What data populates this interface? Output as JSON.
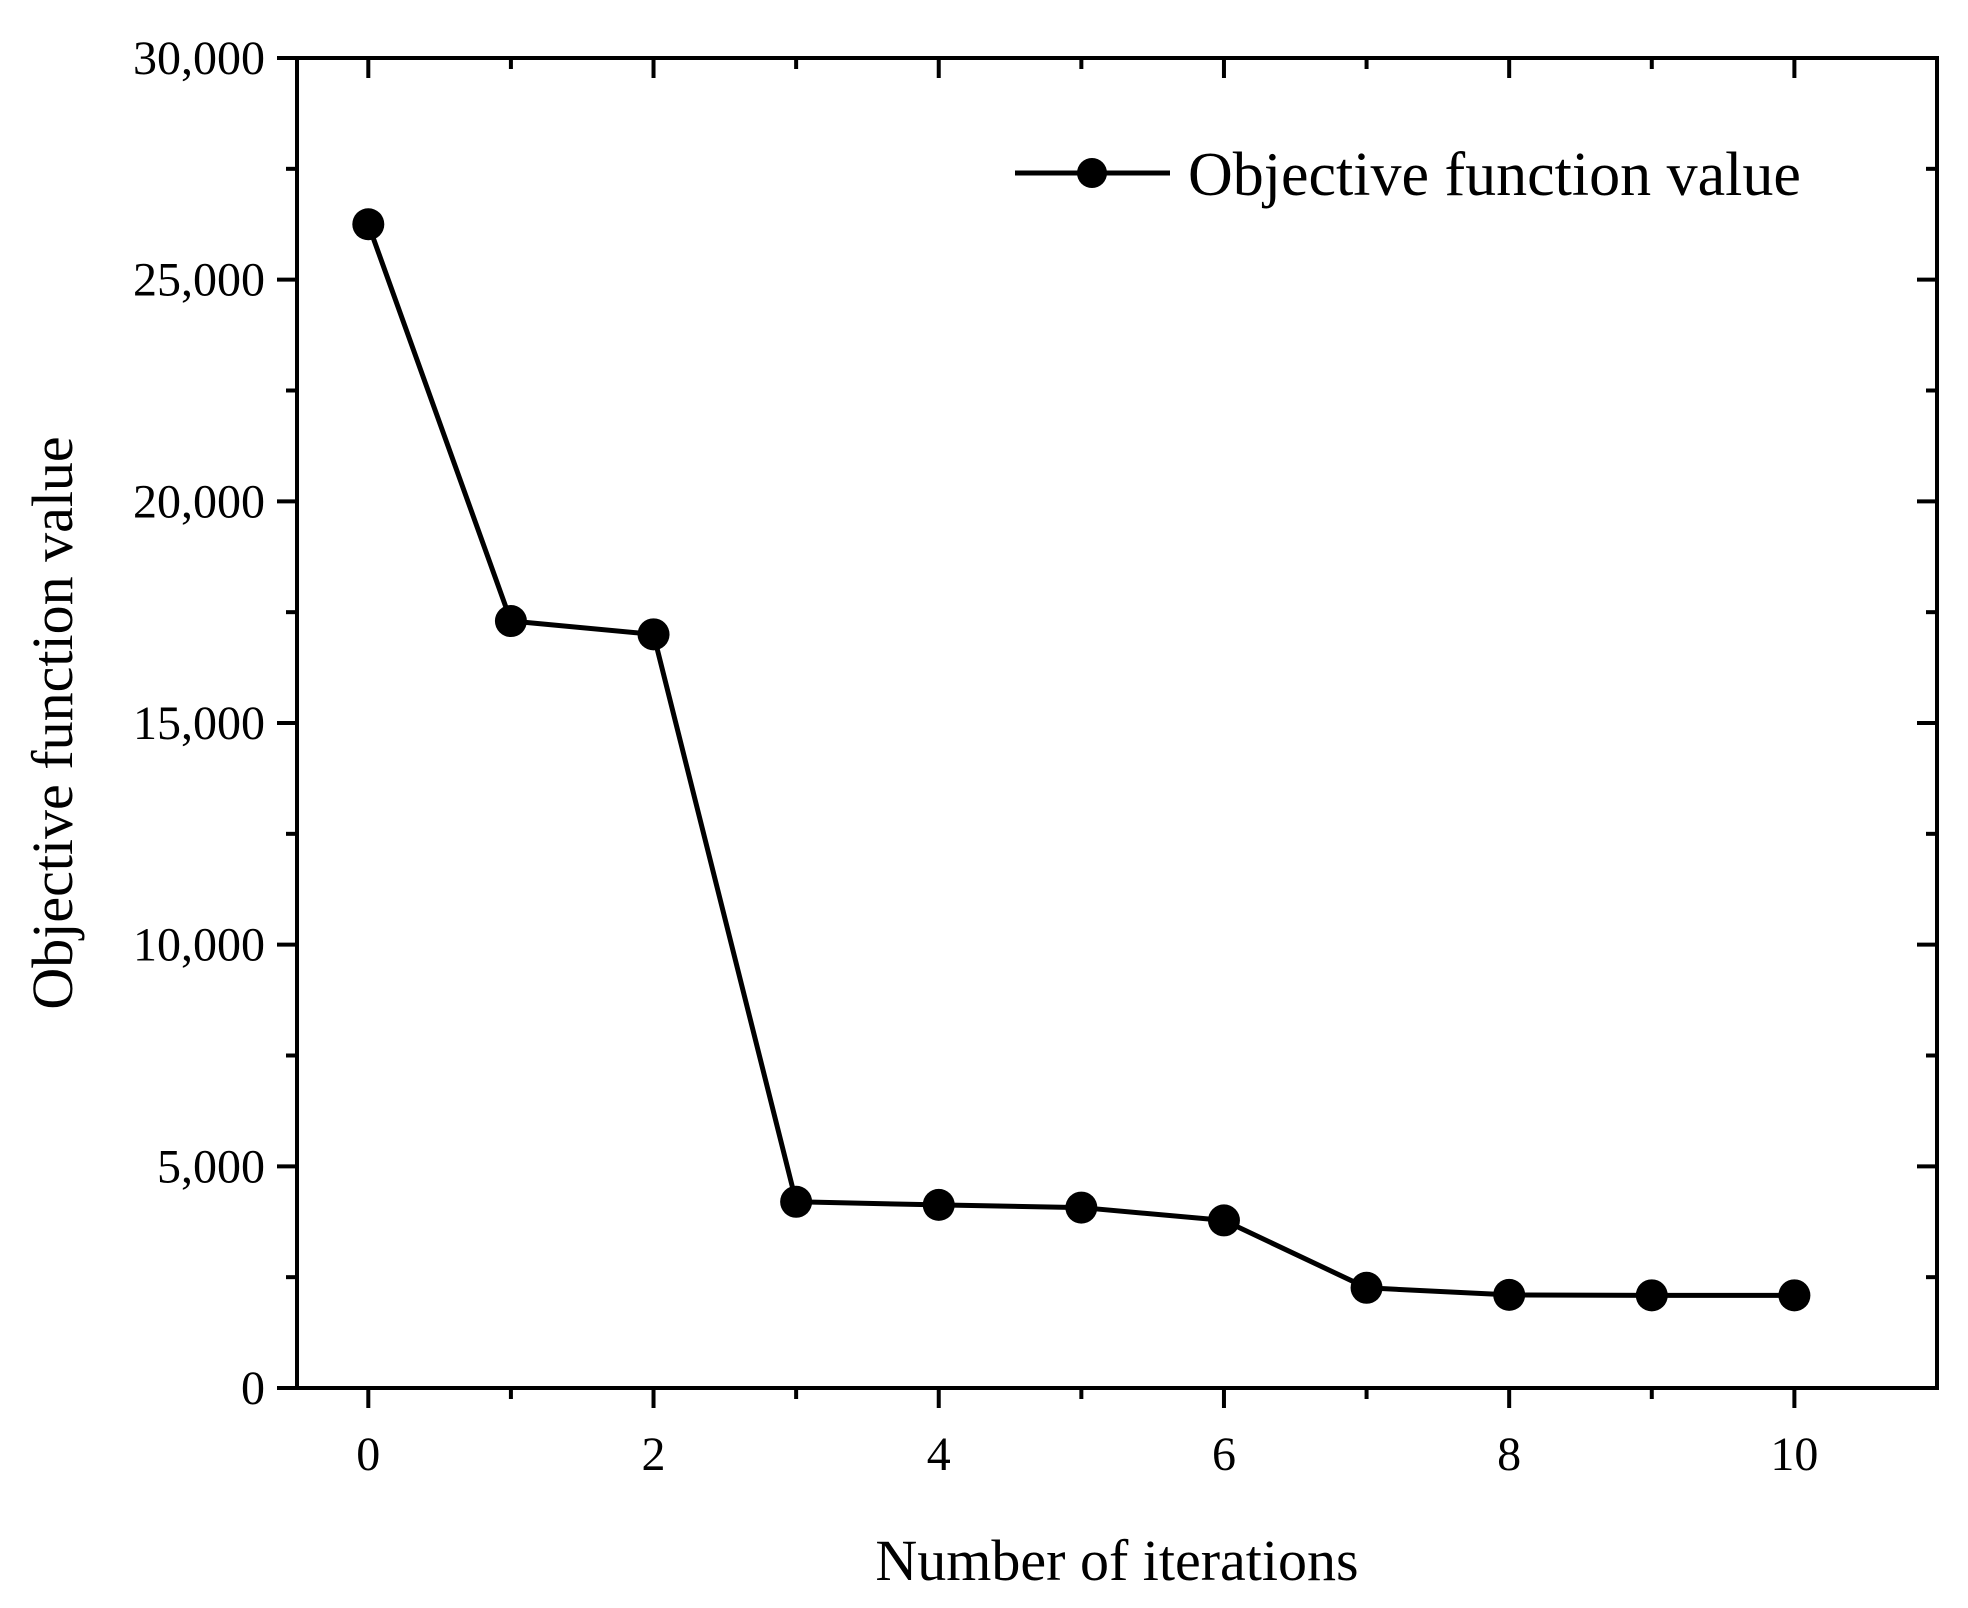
{
  "colors": {
    "line": "#000000",
    "marker": "#000000",
    "axis": "#000000",
    "background": "#ffffff"
  },
  "chart_data": {
    "type": "line",
    "title": "",
    "xlabel": "Number of iterations",
    "ylabel": "Objective function value",
    "xlim": [
      -0.5,
      11
    ],
    "ylim": [
      0,
      30000
    ],
    "xticks": [
      0,
      2,
      4,
      6,
      8,
      10
    ],
    "xtick_labels": [
      "0",
      "2",
      "4",
      "6",
      "8",
      "10"
    ],
    "x_minor_ticks": [
      1,
      3,
      5,
      7,
      9
    ],
    "yticks": [
      0,
      5000,
      10000,
      15000,
      20000,
      25000,
      30000
    ],
    "ytick_labels": [
      "0",
      "5,000",
      "10,000",
      "15,000",
      "20,000",
      "25,000",
      "30,000"
    ],
    "y_minor_ticks": [
      2500,
      7500,
      12500,
      17500,
      22500,
      27500
    ],
    "grid": false,
    "legend_position": "top-right",
    "series": [
      {
        "name": "Objective function value",
        "marker": "circle",
        "x": [
          0,
          1,
          2,
          3,
          4,
          5,
          6,
          7,
          8,
          9,
          10
        ],
        "values": [
          26250,
          17300,
          17000,
          4200,
          4130,
          4070,
          3780,
          2260,
          2100,
          2090,
          2090
        ]
      }
    ]
  }
}
